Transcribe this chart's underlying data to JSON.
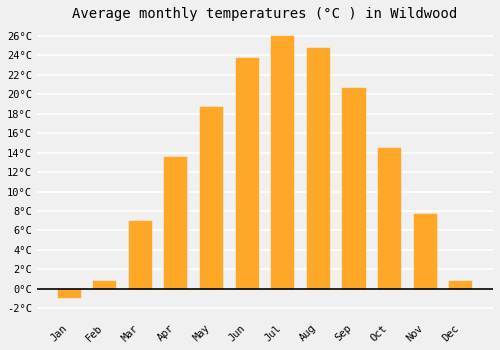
{
  "title": "Average monthly temperatures (°C ) in Wildwood",
  "months": [
    "Jan",
    "Feb",
    "Mar",
    "Apr",
    "May",
    "Jun",
    "Jul",
    "Aug",
    "Sep",
    "Oct",
    "Nov",
    "Dec"
  ],
  "values": [
    -1.0,
    0.8,
    7.0,
    13.5,
    18.7,
    23.7,
    26.0,
    24.8,
    20.7,
    14.5,
    7.7,
    0.8
  ],
  "bar_color": "#FFA726",
  "bar_edge_color": "#FFA726",
  "background_color": "#F0F0F0",
  "grid_color": "#FFFFFF",
  "ylim": [
    -3,
    27
  ],
  "yticks": [
    -2,
    0,
    2,
    4,
    6,
    8,
    10,
    12,
    14,
    16,
    18,
    20,
    22,
    24,
    26
  ],
  "ytick_labels": [
    "-2°C",
    "0°C",
    "2°C",
    "4°C",
    "6°C",
    "8°C",
    "10°C",
    "12°C",
    "14°C",
    "16°C",
    "18°C",
    "20°C",
    "22°C",
    "24°C",
    "26°C"
  ],
  "title_fontsize": 10,
  "tick_fontsize": 7.5,
  "font_family": "monospace"
}
